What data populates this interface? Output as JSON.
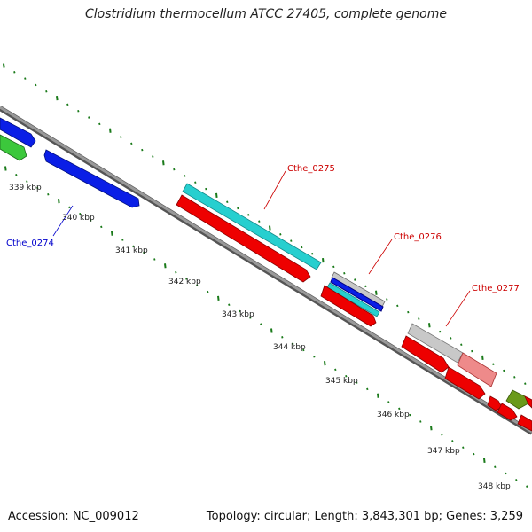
{
  "map": {
    "title": "Clostridium thermocellum ATCC 27405, complete genome",
    "accession_text": "Accession: NC_009012",
    "summary_text": "Topology: circular; Length: 3,843,301 bp; Genes: 3,259",
    "ticks": [
      {
        "label": "339 kbp"
      },
      {
        "label": "340 kbp"
      },
      {
        "label": "341 kbp"
      },
      {
        "label": "342 kbp"
      },
      {
        "label": "343 kbp"
      },
      {
        "label": "344 kbp"
      },
      {
        "label": "345 kbp"
      },
      {
        "label": "346 kbp"
      },
      {
        "label": "347 kbp"
      },
      {
        "label": "348 kbp"
      }
    ],
    "gene_labels": [
      {
        "text": "Cthe_0274",
        "color": "#0000cc"
      },
      {
        "text": "Cthe_0275",
        "color": "#cc0000"
      },
      {
        "text": "Cthe_0276",
        "color": "#cc0000"
      },
      {
        "text": "Cthe_0277",
        "color": "#cc0000"
      }
    ],
    "colors": {
      "backbone": "#888888",
      "ticks": "#1a7a1a",
      "forward_blue": "#0a1ee6",
      "green": "#3cc83c",
      "cyan": "#27cfcf",
      "red": "#ee0000",
      "grey": "#c8c8c8",
      "pink": "#ee8a8a",
      "olive": "#6a9a1a",
      "navy": "#000080"
    }
  }
}
